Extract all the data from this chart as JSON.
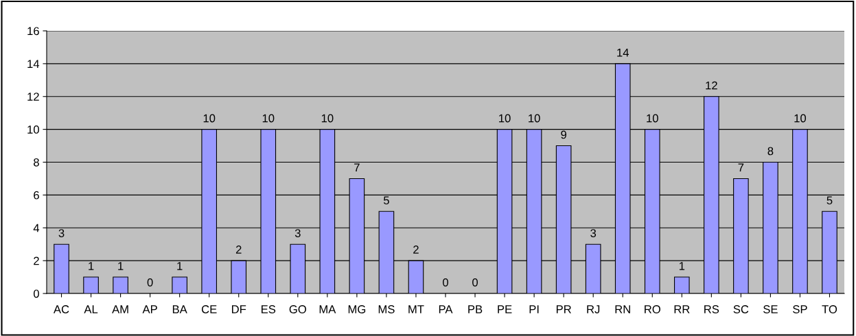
{
  "chart_data": {
    "type": "bar",
    "categories": [
      "AC",
      "AL",
      "AM",
      "AP",
      "BA",
      "CE",
      "DF",
      "ES",
      "GO",
      "MA",
      "MG",
      "MS",
      "MT",
      "PA",
      "PB",
      "PE",
      "PI",
      "PR",
      "RJ",
      "RN",
      "RO",
      "RR",
      "RS",
      "SC",
      "SE",
      "SP",
      "TO"
    ],
    "values": [
      3,
      1,
      1,
      0,
      1,
      10,
      2,
      10,
      3,
      10,
      7,
      5,
      2,
      0,
      0,
      10,
      10,
      9,
      3,
      14,
      10,
      1,
      12,
      7,
      8,
      10,
      5
    ],
    "color": "#9999ff",
    "ylim": [
      0,
      16
    ],
    "yticks": [
      0,
      2,
      4,
      6,
      8,
      10,
      12,
      14,
      16
    ],
    "grid": "y",
    "data_labels": true
  }
}
